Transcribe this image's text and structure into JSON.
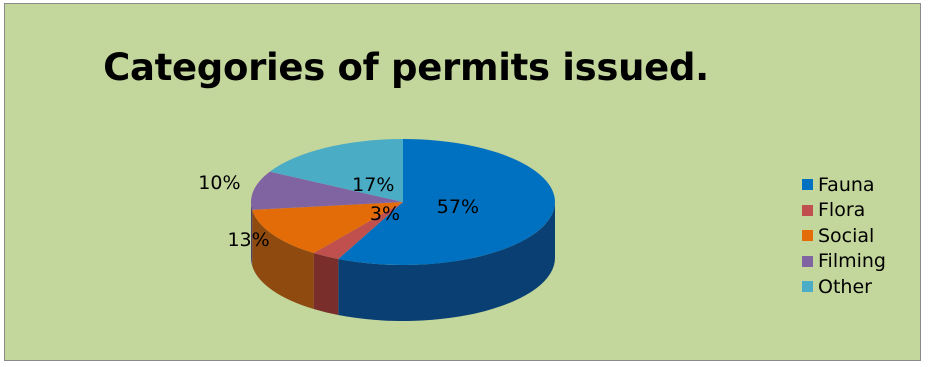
{
  "chart_data": {
    "type": "pie",
    "title": "Categories of permits issued.",
    "categories": [
      "Fauna",
      "Flora",
      "Social",
      "Filming",
      "Other"
    ],
    "values": [
      57,
      3,
      13,
      10,
      17
    ],
    "data_labels": [
      "57%",
      "3%",
      "13%",
      "10%",
      "17%"
    ],
    "colors": [
      "#0070c0",
      "#c0504d",
      "#e36c09",
      "#8064a2",
      "#4bacc6"
    ],
    "side_colors": [
      "#0a3f73",
      "#7a2e2c",
      "#8f4a10",
      "#4e3d66",
      "#2e6d80"
    ],
    "style": "3d",
    "legend_position": "right",
    "background": "#c3d69b"
  }
}
